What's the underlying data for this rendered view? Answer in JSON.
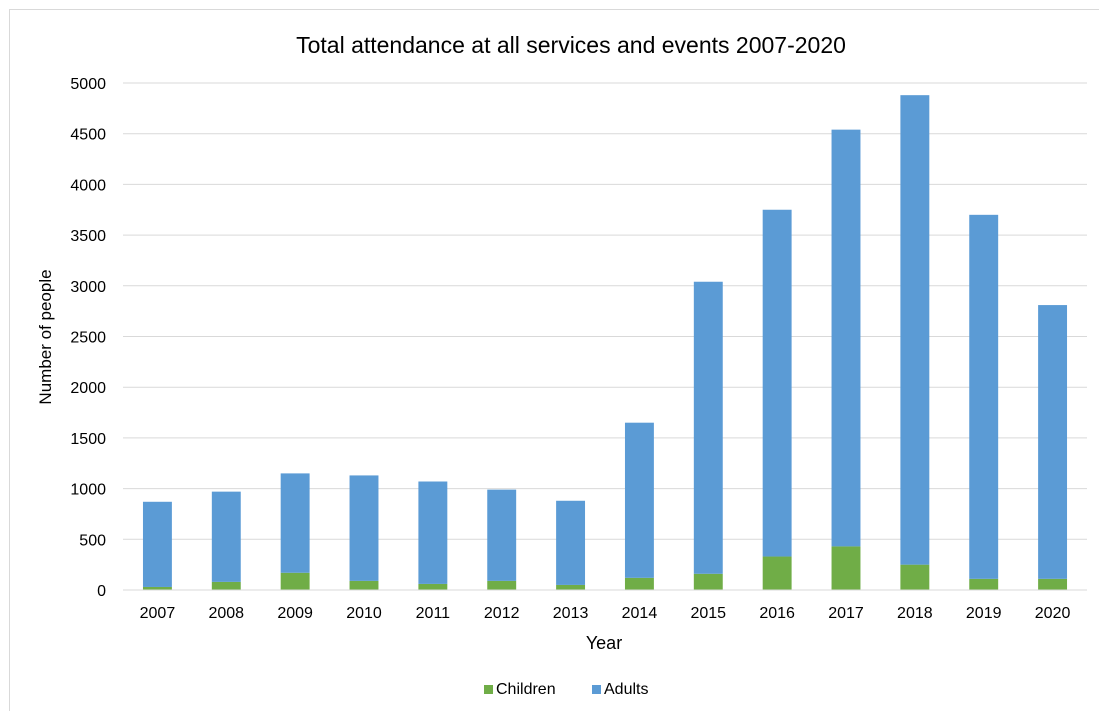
{
  "chart_data": {
    "type": "bar",
    "stacked": true,
    "title": "Total attendance at all services and events 2007-2020",
    "xlabel": "Year",
    "ylabel": "Number of people",
    "categories": [
      "2007",
      "2008",
      "2009",
      "2010",
      "2011",
      "2012",
      "2013",
      "2014",
      "2015",
      "2016",
      "2017",
      "2018",
      "2019",
      "2020"
    ],
    "series": [
      {
        "name": "Children",
        "color": "#70ad47",
        "values": [
          30,
          80,
          170,
          90,
          60,
          90,
          50,
          120,
          160,
          330,
          430,
          250,
          110,
          110
        ]
      },
      {
        "name": "Adults",
        "color": "#5b9bd5",
        "values": [
          840,
          890,
          980,
          1040,
          1010,
          900,
          830,
          1530,
          2880,
          3420,
          4110,
          4630,
          3590,
          2700
        ]
      }
    ],
    "ylim": [
      0,
      5000
    ],
    "yticks": [
      0,
      500,
      1000,
      1500,
      2000,
      2500,
      3000,
      3500,
      4000,
      4500,
      5000
    ],
    "grid": true,
    "legend_position": "bottom"
  }
}
